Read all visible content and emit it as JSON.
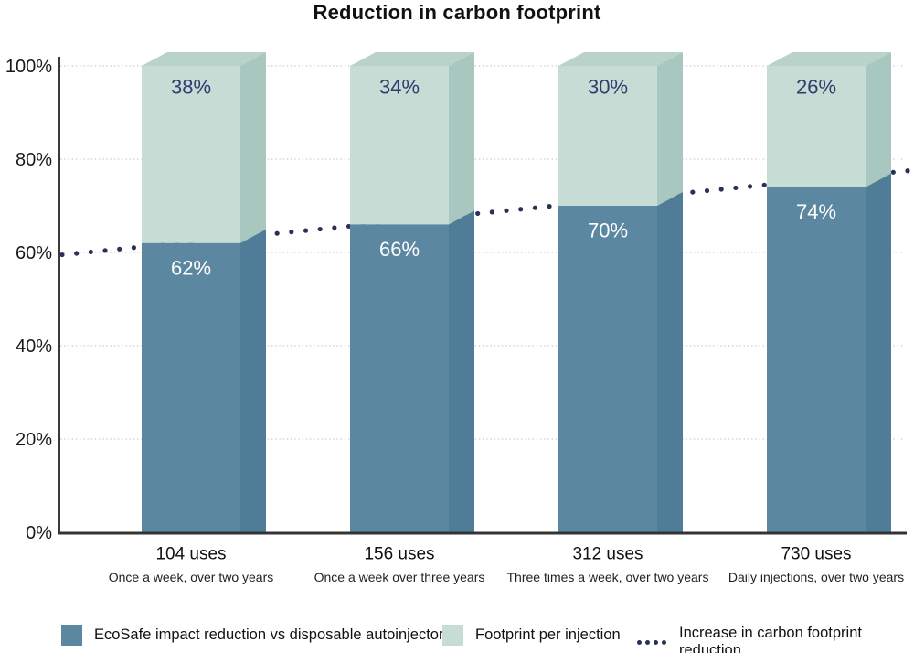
{
  "page": {
    "title": "Reduction in carbon footprint",
    "background": "#ffffff"
  },
  "chart_data": {
    "type": "bar",
    "subtype": "stacked-3d",
    "title": "Reduction in carbon footprint",
    "grid": "dotted-horizontal",
    "ylim": [
      0,
      100
    ],
    "value_suffix": "%",
    "y_ticks": [
      {
        "value": 100,
        "label": "100%"
      },
      {
        "value": 80,
        "label": "80%"
      },
      {
        "value": 60,
        "label": "60%"
      },
      {
        "value": 40,
        "label": "40%"
      },
      {
        "value": 20,
        "label": "20%"
      },
      {
        "value": 0,
        "label": "0%"
      }
    ],
    "categories": [
      {
        "label": "104 uses",
        "sublabel": "Once a week, over two years"
      },
      {
        "label": "156 uses",
        "sublabel": "Once a week over three years"
      },
      {
        "label": "312 uses",
        "sublabel": "Three times a week, over two years"
      },
      {
        "label": "730 uses",
        "sublabel": "Daily injections, over two years"
      }
    ],
    "series": [
      {
        "name": "EcoSafe impact reduction vs disposable autoinjector",
        "values": [
          62,
          66,
          70,
          74
        ],
        "labels": [
          "62%",
          "66%",
          "70%",
          "74%"
        ],
        "color": "#5b87a0",
        "side_color": "#4f7d98",
        "label_color": "#ffffff"
      },
      {
        "name": "Footprint per injection",
        "values": [
          38,
          34,
          30,
          26
        ],
        "labels": [
          "38%",
          "34%",
          "30%",
          "26%"
        ],
        "color": "#c7dcd4",
        "side_color": "#a8c7be",
        "top_color": "#b9d2ca",
        "label_color": "#2e3c6e"
      }
    ],
    "trend": {
      "name": "Increase in carbon footprint reduction",
      "style": "dotted",
      "color": "#283159",
      "start_value": 59.5,
      "end_value": 77.5
    },
    "legend_position": "bottom",
    "colors": {
      "grid": "#c9c9c9",
      "axis": "#3a3a3a",
      "text": "#111111"
    }
  },
  "legend": {
    "items": [
      {
        "label": "EcoSafe impact reduction vs disposable autoinjector",
        "swatch": "dark-square"
      },
      {
        "label": "Footprint per injection",
        "swatch": "light-square"
      },
      {
        "label": "Increase in carbon footprint reduction",
        "swatch": "dotted-line"
      }
    ]
  }
}
